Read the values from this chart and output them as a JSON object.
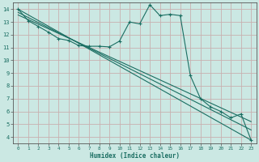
{
  "xlabel": "Humidex (Indice chaleur)",
  "xlim": [
    -0.5,
    23.5
  ],
  "ylim": [
    3.5,
    14.5
  ],
  "xticks": [
    0,
    1,
    2,
    3,
    4,
    5,
    6,
    7,
    8,
    9,
    10,
    11,
    12,
    13,
    14,
    15,
    16,
    17,
    18,
    19,
    20,
    21,
    22,
    23
  ],
  "yticks": [
    4,
    5,
    6,
    7,
    8,
    9,
    10,
    11,
    12,
    13,
    14
  ],
  "bg_color": "#cbe8e3",
  "grid_color": "#c8b0b0",
  "line_color": "#1a6e62",
  "main_series": [
    14.0,
    13.1,
    12.65,
    12.2,
    11.7,
    11.55,
    11.15,
    11.1,
    11.1,
    11.05,
    11.5,
    13.0,
    12.85,
    14.35,
    13.5,
    13.6,
    13.5,
    8.8,
    7.0,
    6.35,
    6.0,
    5.5,
    5.8,
    3.75
  ],
  "regression_lines": [
    {
      "x0": 0,
      "y0": 14.0,
      "x1": 23,
      "y1": 3.75
    },
    {
      "x0": 0,
      "y0": 13.75,
      "x1": 23,
      "y1": 4.55
    },
    {
      "x0": 0,
      "y0": 13.55,
      "x1": 23,
      "y1": 5.2
    }
  ]
}
